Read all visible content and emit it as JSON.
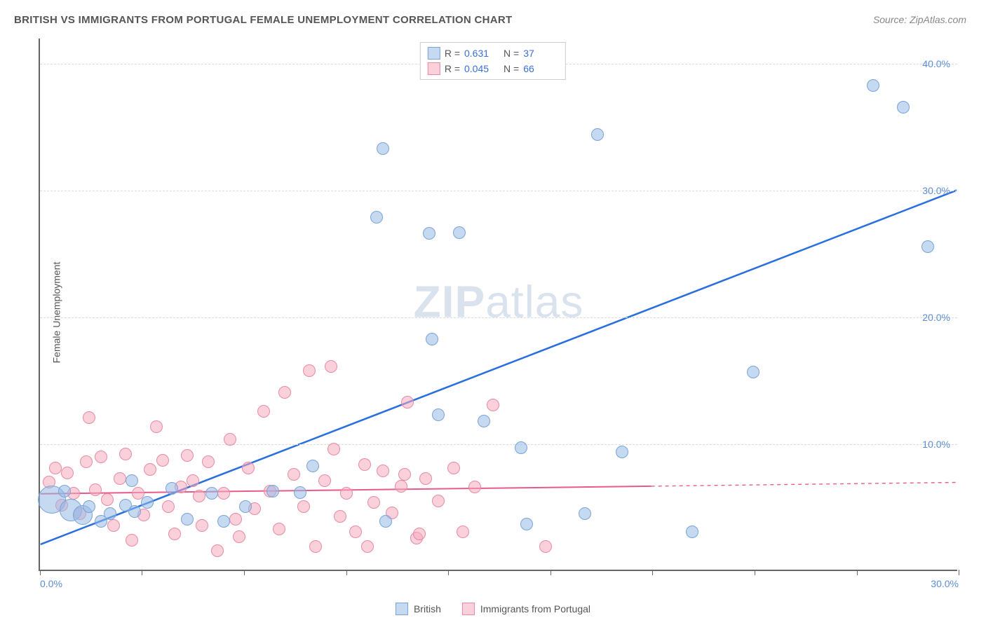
{
  "title": "BRITISH VS IMMIGRANTS FROM PORTUGAL FEMALE UNEMPLOYMENT CORRELATION CHART",
  "source": "Source: ZipAtlas.com",
  "y_axis_label": "Female Unemployment",
  "watermark": {
    "part1": "ZIP",
    "part2": "atlas"
  },
  "chart": {
    "type": "scatter",
    "background_color": "#ffffff",
    "grid_color": "#dddddd",
    "axis_color": "#666666",
    "xlim": [
      0,
      30
    ],
    "ylim": [
      0,
      42
    ],
    "x_ticks": [
      0,
      3.33,
      6.67,
      10,
      13.33,
      16.67,
      20,
      23.33,
      26.67,
      30
    ],
    "x_tick_labels_shown": {
      "0": "0.0%",
      "30": "30.0%"
    },
    "y_ticks": [
      10,
      20,
      30,
      40
    ],
    "y_tick_labels": {
      "10": "10.0%",
      "20": "20.0%",
      "30": "30.0%",
      "40": "40.0%"
    },
    "tick_label_color": "#5b8dd6",
    "tick_label_fontsize": 14
  },
  "series": {
    "british": {
      "label": "British",
      "fill_color": "rgba(150, 185, 230, 0.55)",
      "stroke_color": "#7aa3d9",
      "trend_color": "#2a6fe0",
      "trend_width": 2.5,
      "marker_radius": 9,
      "trend": {
        "x1": 0,
        "y1": 2.0,
        "x2": 30,
        "y2": 30.0,
        "dashed_from_x": null
      },
      "points": [
        {
          "x": 0.4,
          "y": 5.5,
          "r": 20
        },
        {
          "x": 1.0,
          "y": 4.7,
          "r": 16
        },
        {
          "x": 1.4,
          "y": 4.3,
          "r": 14
        },
        {
          "x": 0.8,
          "y": 6.2
        },
        {
          "x": 1.6,
          "y": 5.0
        },
        {
          "x": 2.3,
          "y": 4.4
        },
        {
          "x": 2.8,
          "y": 5.1
        },
        {
          "x": 3.1,
          "y": 4.6
        },
        {
          "x": 3.5,
          "y": 5.3
        },
        {
          "x": 4.3,
          "y": 6.4
        },
        {
          "x": 5.6,
          "y": 6.0
        },
        {
          "x": 6.0,
          "y": 3.8
        },
        {
          "x": 7.6,
          "y": 6.2
        },
        {
          "x": 8.5,
          "y": 6.1
        },
        {
          "x": 8.9,
          "y": 8.2
        },
        {
          "x": 11.3,
          "y": 3.8
        },
        {
          "x": 12.8,
          "y": 18.2
        },
        {
          "x": 13.0,
          "y": 12.2
        },
        {
          "x": 11.2,
          "y": 33.2
        },
        {
          "x": 11.0,
          "y": 27.8
        },
        {
          "x": 12.7,
          "y": 26.5
        },
        {
          "x": 13.7,
          "y": 26.6
        },
        {
          "x": 14.5,
          "y": 11.7
        },
        {
          "x": 15.7,
          "y": 9.6
        },
        {
          "x": 15.9,
          "y": 3.6
        },
        {
          "x": 17.8,
          "y": 4.4
        },
        {
          "x": 18.2,
          "y": 34.3
        },
        {
          "x": 19.0,
          "y": 9.3
        },
        {
          "x": 21.3,
          "y": 3.0
        },
        {
          "x": 23.3,
          "y": 15.6
        },
        {
          "x": 27.2,
          "y": 38.2
        },
        {
          "x": 28.2,
          "y": 36.5
        },
        {
          "x": 29.0,
          "y": 25.5
        },
        {
          "x": 3.0,
          "y": 7.0
        },
        {
          "x": 2.0,
          "y": 3.8
        },
        {
          "x": 4.8,
          "y": 4.0
        },
        {
          "x": 6.7,
          "y": 5.0
        }
      ]
    },
    "portugal": {
      "label": "Immigrants from Portugal",
      "fill_color": "rgba(245, 170, 190, 0.55)",
      "stroke_color": "#e88aa3",
      "trend_color": "#e85a8a",
      "trend_width": 2,
      "marker_radius": 9,
      "trend": {
        "x1": 0,
        "y1": 6.0,
        "x2": 30,
        "y2": 6.9,
        "dashed_from_x": 20
      },
      "points": [
        {
          "x": 0.3,
          "y": 6.9
        },
        {
          "x": 0.5,
          "y": 8.0
        },
        {
          "x": 0.7,
          "y": 5.1
        },
        {
          "x": 0.9,
          "y": 7.6
        },
        {
          "x": 1.1,
          "y": 6.0
        },
        {
          "x": 1.3,
          "y": 4.4
        },
        {
          "x": 1.5,
          "y": 8.5
        },
        {
          "x": 1.8,
          "y": 6.3
        },
        {
          "x": 1.6,
          "y": 12.0
        },
        {
          "x": 2.0,
          "y": 8.9
        },
        {
          "x": 2.2,
          "y": 5.5
        },
        {
          "x": 2.4,
          "y": 3.5
        },
        {
          "x": 2.6,
          "y": 7.2
        },
        {
          "x": 2.8,
          "y": 9.1
        },
        {
          "x": 3.0,
          "y": 2.3
        },
        {
          "x": 3.2,
          "y": 6.0
        },
        {
          "x": 3.4,
          "y": 4.3
        },
        {
          "x": 3.6,
          "y": 7.9
        },
        {
          "x": 3.8,
          "y": 11.3
        },
        {
          "x": 4.0,
          "y": 8.6
        },
        {
          "x": 4.2,
          "y": 5.0
        },
        {
          "x": 4.4,
          "y": 2.8
        },
        {
          "x": 4.6,
          "y": 6.5
        },
        {
          "x": 4.8,
          "y": 9.0
        },
        {
          "x": 5.0,
          "y": 7.0
        },
        {
          "x": 5.3,
          "y": 3.5
        },
        {
          "x": 5.5,
          "y": 8.5
        },
        {
          "x": 5.8,
          "y": 1.5
        },
        {
          "x": 6.0,
          "y": 6.0
        },
        {
          "x": 6.2,
          "y": 10.3
        },
        {
          "x": 6.5,
          "y": 2.6
        },
        {
          "x": 6.8,
          "y": 8.0
        },
        {
          "x": 7.0,
          "y": 4.8
        },
        {
          "x": 7.3,
          "y": 12.5
        },
        {
          "x": 7.5,
          "y": 6.2
        },
        {
          "x": 7.8,
          "y": 3.2
        },
        {
          "x": 8.0,
          "y": 14.0
        },
        {
          "x": 8.3,
          "y": 7.5
        },
        {
          "x": 8.6,
          "y": 5.0
        },
        {
          "x": 8.8,
          "y": 15.7
        },
        {
          "x": 9.0,
          "y": 1.8
        },
        {
          "x": 9.3,
          "y": 7.0
        },
        {
          "x": 9.6,
          "y": 9.5
        },
        {
          "x": 9.8,
          "y": 4.2
        },
        {
          "x": 9.5,
          "y": 16.0
        },
        {
          "x": 10.0,
          "y": 6.0
        },
        {
          "x": 10.3,
          "y": 3.0
        },
        {
          "x": 10.6,
          "y": 8.3
        },
        {
          "x": 10.9,
          "y": 5.3
        },
        {
          "x": 11.2,
          "y": 7.8
        },
        {
          "x": 11.5,
          "y": 4.5
        },
        {
          "x": 11.8,
          "y": 6.6
        },
        {
          "x": 12.0,
          "y": 13.2
        },
        {
          "x": 12.3,
          "y": 2.5
        },
        {
          "x": 12.6,
          "y": 7.2
        },
        {
          "x": 13.0,
          "y": 5.4
        },
        {
          "x": 13.5,
          "y": 8.0
        },
        {
          "x": 13.8,
          "y": 3.0
        },
        {
          "x": 14.2,
          "y": 6.5
        },
        {
          "x": 14.8,
          "y": 13.0
        },
        {
          "x": 12.4,
          "y": 2.8
        },
        {
          "x": 11.9,
          "y": 7.5
        },
        {
          "x": 10.7,
          "y": 1.8
        },
        {
          "x": 6.4,
          "y": 4.0
        },
        {
          "x": 16.5,
          "y": 1.8
        },
        {
          "x": 5.2,
          "y": 5.8
        }
      ]
    }
  },
  "stats_legend": {
    "rows": [
      {
        "series": "british",
        "r_label": "R =",
        "r_value": "0.631",
        "n_label": "N =",
        "n_value": "37"
      },
      {
        "series": "portugal",
        "r_label": "R =",
        "r_value": "0.045",
        "n_label": "N =",
        "n_value": "66"
      }
    ]
  },
  "bottom_legend": {
    "items": [
      {
        "series": "british"
      },
      {
        "series": "portugal"
      }
    ]
  }
}
